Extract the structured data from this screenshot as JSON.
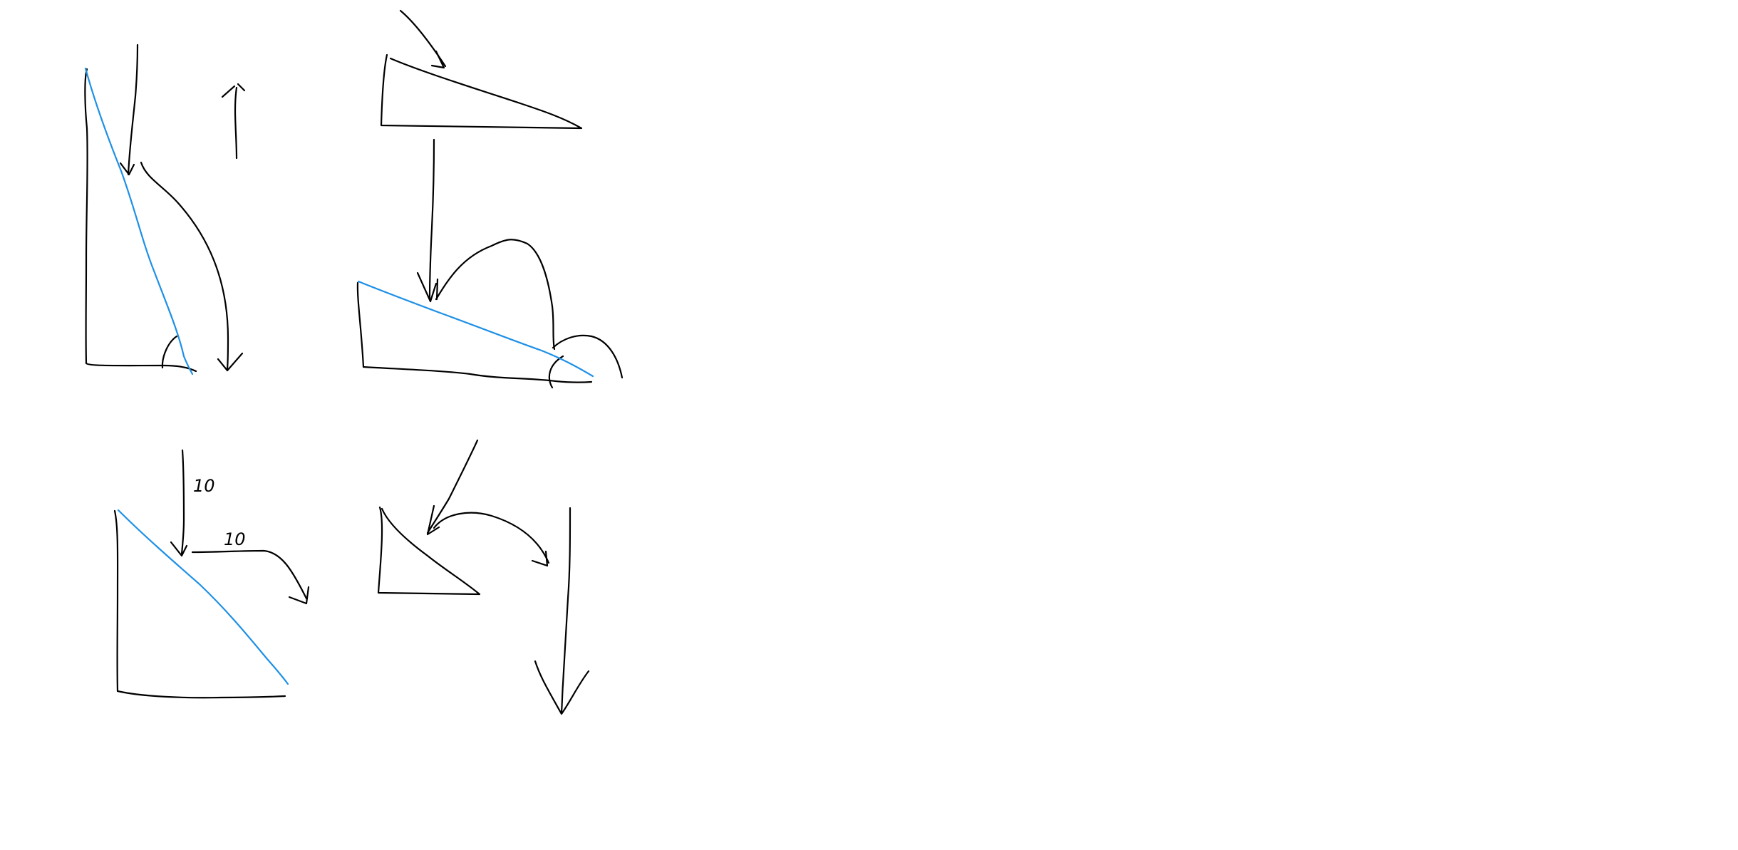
{
  "colors": {
    "background": "#ffffff",
    "ink_black": "#000000",
    "ink_blue": "#1e90e6"
  },
  "labels": {
    "left_arrow_value": "10",
    "top_arrow_value": "10"
  }
}
